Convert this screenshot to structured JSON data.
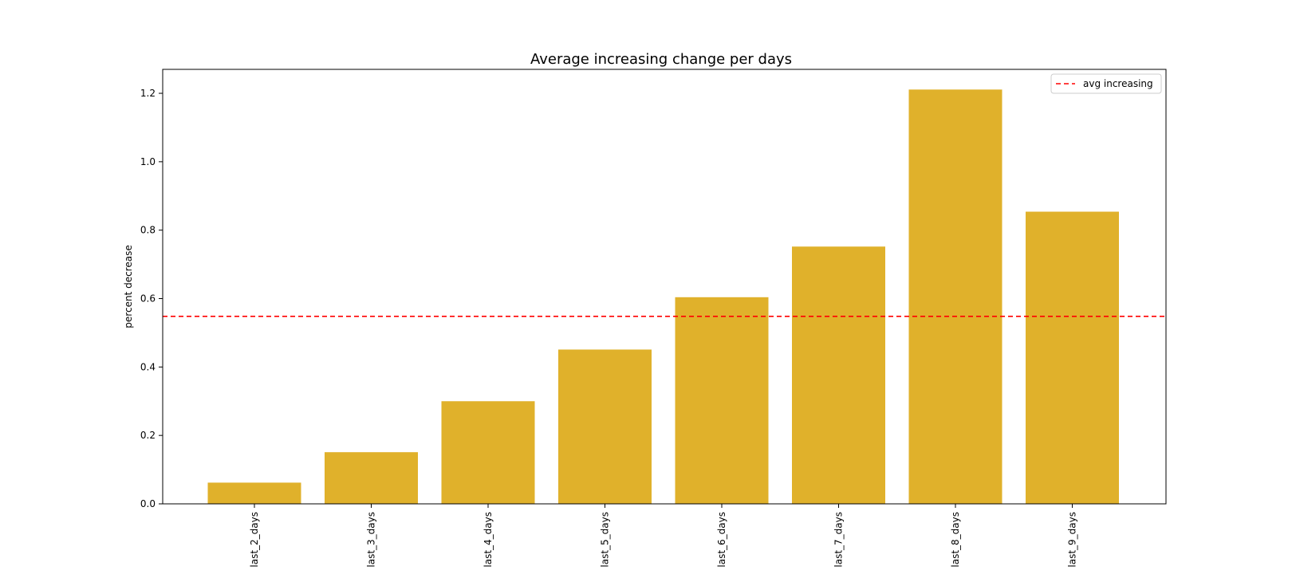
{
  "colors": {
    "bar": "#e0b12b",
    "avg_line": "#ff0000",
    "axis": "#000000",
    "background": "#ffffff",
    "legend_border": "#cccccc"
  },
  "chart_data": {
    "type": "bar",
    "title": "Average increasing change per days",
    "xlabel": "",
    "ylabel": "percent decrease",
    "categories": [
      "last_2_days",
      "last_3_days",
      "last_4_days",
      "last_5_days",
      "last_6_days",
      "last_7_days",
      "last_8_days",
      "last_9_days"
    ],
    "values": [
      0.062,
      0.151,
      0.3,
      0.451,
      0.604,
      0.752,
      1.211,
      0.854
    ],
    "ylim": [
      0,
      1.27
    ],
    "yticks": [
      0.0,
      0.2,
      0.4,
      0.6,
      0.8,
      1.0,
      1.2
    ],
    "ytick_labels": [
      "0.0",
      "0.2",
      "0.4",
      "0.6",
      "0.8",
      "1.0",
      "1.2"
    ],
    "reference_line": {
      "label": "avg increasing",
      "value": 0.548,
      "style": "dashed"
    },
    "legend_position": "top-right",
    "grid": false
  }
}
